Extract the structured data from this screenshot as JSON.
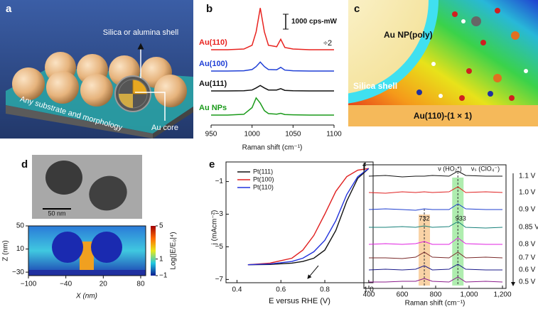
{
  "panels": {
    "a": {
      "letter": "a",
      "shell_label": "Silica or alumina shell",
      "substrate_label": "Any substrate and morphology",
      "core_label": "Au core"
    },
    "c": {
      "letter": "c",
      "np_label": "Au NP(poly)",
      "shell_label": "Silica shell",
      "surface_label": "Au(110)-(1 × 1)"
    }
  },
  "chart_data": [
    {
      "type": "spectra",
      "letter": "b",
      "xlabel": "Raman shift (cm⁻¹)",
      "x": [
        950,
        970,
        990,
        1000,
        1005,
        1010,
        1015,
        1020,
        1030,
        1035,
        1040,
        1050,
        1070,
        1100
      ],
      "xlim": [
        950,
        1100
      ],
      "xticks": [
        950,
        1000,
        1050,
        1100
      ],
      "scale_bar": {
        "value": 1000,
        "label": "1000 cps-mW"
      },
      "annotation": "÷2",
      "series": [
        {
          "name": "Au(110)",
          "color": "#e8231f",
          "values": [
            0,
            0,
            50,
            300,
            1200,
            2800,
            1200,
            300,
            200,
            700,
            150,
            50,
            0,
            0
          ]
        },
        {
          "name": "Au(100)",
          "color": "#1f3fd6",
          "values": [
            0,
            0,
            20,
            100,
            300,
            600,
            300,
            100,
            80,
            250,
            60,
            20,
            0,
            0
          ]
        },
        {
          "name": "Au(111)",
          "color": "#111111",
          "values": [
            0,
            0,
            10,
            60,
            200,
            360,
            200,
            60,
            60,
            150,
            40,
            10,
            0,
            0
          ]
        },
        {
          "name": "Au NPs",
          "color": "#1a9a1a",
          "values": [
            0,
            0,
            50,
            500,
            1150,
            800,
            300,
            100,
            60,
            120,
            40,
            20,
            0,
            0
          ]
        }
      ]
    },
    {
      "type": "field-map",
      "letter": "d",
      "scale_label": "50 nm",
      "xlabel": "X (nm)",
      "ylabel": "Z (nm)",
      "xlim": [
        -100,
        88
      ],
      "ylim": [
        -36,
        50
      ],
      "xticks": [
        {
          "value": -100,
          "label": "−100"
        },
        {
          "value": -40,
          "label": "−40"
        },
        20,
        80
      ],
      "yticks": [
        {
          "value": -30,
          "label": "−30"
        },
        10,
        50
      ],
      "colorbar": {
        "label": "Log(|E/E₀|⁴)",
        "lim": [
          -1,
          5
        ],
        "ticks": [
          {
            "value": -1,
            "label": "−1"
          },
          1,
          5
        ]
      }
    },
    {
      "type": "line",
      "letter": "e",
      "xlabel": "E versus RHE (V)",
      "ylabel": "j (mAcm⁻²)",
      "x": [
        0.45,
        0.55,
        0.65,
        0.7,
        0.75,
        0.8,
        0.85,
        0.9,
        0.95,
        1.0
      ],
      "xlim": [
        0.35,
        1.02
      ],
      "ylim": [
        -7.2,
        0.2
      ],
      "xticks": [
        0.4,
        0.6,
        0.8,
        {
          "value": 1,
          "label": "1.0"
        }
      ],
      "yticks": [
        {
          "value": -1,
          "label": "−1"
        },
        {
          "value": -3,
          "label": "−3"
        },
        {
          "value": -5,
          "label": "−5"
        },
        {
          "value": -7,
          "label": "−7"
        }
      ],
      "legend": "upper-left",
      "series": [
        {
          "name": "Pt(111)",
          "color": "#111111",
          "values": [
            -6.1,
            -6.08,
            -6.0,
            -5.9,
            -5.7,
            -5.2,
            -4.0,
            -2.2,
            -0.8,
            -0.2
          ]
        },
        {
          "name": "Pt(100)",
          "color": "#e02020",
          "values": [
            -6.1,
            -6.0,
            -5.7,
            -5.2,
            -4.3,
            -3.0,
            -1.6,
            -0.7,
            -0.3,
            -0.2
          ]
        },
        {
          "name": "Pt(110)",
          "color": "#2233dd",
          "values": [
            -6.1,
            -6.05,
            -5.9,
            -5.7,
            -5.3,
            -4.6,
            -3.4,
            -1.8,
            -0.7,
            -0.2
          ]
        }
      ]
    },
    {
      "type": "spectra-stack",
      "letter": "f",
      "xlabel": "Raman shift (cm⁻¹)",
      "x": [
        400,
        500,
        600,
        680,
        732,
        780,
        880,
        933,
        980,
        1100,
        1200
      ],
      "xlim": [
        400,
        1200
      ],
      "xticks": [
        400,
        600,
        800,
        {
          "value": 1000,
          "label": "1,000"
        },
        {
          "value": 1200,
          "label": "1,200"
        }
      ],
      "annotations": [
        "ν (HO₂*)",
        "νₛ (ClO₄⁻)"
      ],
      "peaks": [
        732,
        933
      ],
      "series": [
        {
          "name": "1.1 V",
          "color": "#111111",
          "values": [
            0,
            1,
            -1,
            0,
            0,
            1,
            0,
            7,
            1,
            0,
            0
          ]
        },
        {
          "name": "1.0 V",
          "color": "#e02020",
          "values": [
            0,
            -1,
            1,
            0,
            1,
            0,
            1,
            8,
            0,
            1,
            0
          ]
        },
        {
          "name": "0.9 V",
          "color": "#1f3fd0",
          "values": [
            0,
            1,
            0,
            -1,
            1,
            0,
            0,
            8,
            1,
            0,
            0
          ]
        },
        {
          "name": "0.85 V",
          "color": "#16807a",
          "values": [
            0,
            0,
            1,
            0,
            2,
            0,
            1,
            8,
            0,
            -1,
            0
          ]
        },
        {
          "name": "0.8 V",
          "color": "#e020e0",
          "values": [
            0,
            1,
            0,
            1,
            4,
            0,
            0,
            9,
            1,
            0,
            0
          ]
        },
        {
          "name": "0.7 V",
          "color": "#7a2a2a",
          "values": [
            0,
            0,
            -1,
            1,
            8,
            1,
            0,
            8,
            0,
            1,
            0
          ]
        },
        {
          "name": "0.6 V",
          "color": "#1a1a8a",
          "values": [
            0,
            1,
            0,
            1,
            6,
            0,
            1,
            8,
            1,
            0,
            0
          ]
        },
        {
          "name": "0.5 V",
          "color": "#8a1a8a",
          "values": [
            0,
            0,
            1,
            1,
            5,
            1,
            0,
            7,
            0,
            1,
            0
          ]
        }
      ]
    }
  ]
}
